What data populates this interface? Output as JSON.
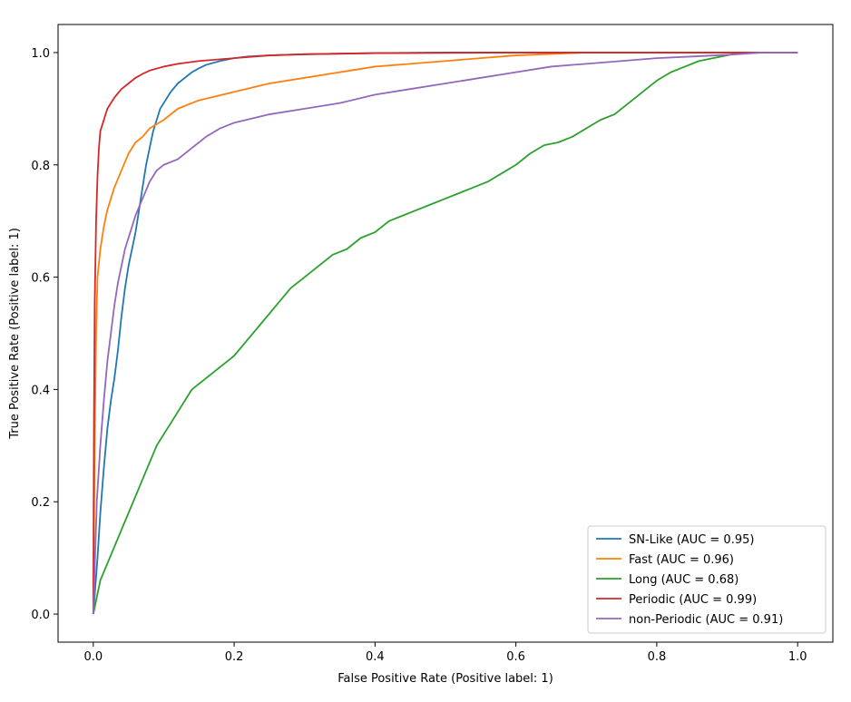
{
  "chart_data": {
    "type": "line",
    "title": "",
    "xlabel": "False Positive Rate (Positive label: 1)",
    "ylabel": "True Positive Rate (Positive label: 1)",
    "xlim": [
      -0.05,
      1.05
    ],
    "ylim": [
      -0.05,
      1.05
    ],
    "grid": false,
    "legend_position": "bottom-right",
    "x_ticks": [
      {
        "value": 0.0,
        "label": "0.0"
      },
      {
        "value": 0.2,
        "label": "0.2"
      },
      {
        "value": 0.4,
        "label": "0.4"
      },
      {
        "value": 0.6,
        "label": "0.6"
      },
      {
        "value": 0.8,
        "label": "0.8"
      },
      {
        "value": 1.0,
        "label": "1.0"
      }
    ],
    "y_ticks": [
      {
        "value": 0.0,
        "label": "0.0"
      },
      {
        "value": 0.2,
        "label": "0.2"
      },
      {
        "value": 0.4,
        "label": "0.4"
      },
      {
        "value": 0.6,
        "label": "0.6"
      },
      {
        "value": 0.8,
        "label": "0.8"
      },
      {
        "value": 1.0,
        "label": "1.0"
      }
    ],
    "series": [
      {
        "name": "SN-Like (AUC = 0.95)",
        "color": "#1f77b4",
        "x": [
          0,
          0.003,
          0.006,
          0.01,
          0.015,
          0.02,
          0.025,
          0.03,
          0.035,
          0.04,
          0.045,
          0.05,
          0.055,
          0.06,
          0.065,
          0.07,
          0.075,
          0.08,
          0.085,
          0.09,
          0.095,
          0.1,
          0.11,
          0.12,
          0.13,
          0.14,
          0.15,
          0.16,
          0.18,
          0.2,
          0.22,
          0.25,
          0.3,
          0.4,
          0.5,
          0.7,
          0.9,
          1.0
        ],
        "y": [
          0,
          0.05,
          0.1,
          0.18,
          0.26,
          0.33,
          0.38,
          0.42,
          0.47,
          0.53,
          0.58,
          0.62,
          0.65,
          0.68,
          0.72,
          0.76,
          0.8,
          0.83,
          0.86,
          0.88,
          0.9,
          0.91,
          0.93,
          0.945,
          0.955,
          0.965,
          0.972,
          0.978,
          0.985,
          0.99,
          0.993,
          0.995,
          0.997,
          0.999,
          1.0,
          1.0,
          1.0,
          1.0
        ]
      },
      {
        "name": "Fast (AUC = 0.96)",
        "color": "#ff7f0e",
        "x": [
          0,
          0.002,
          0.004,
          0.006,
          0.01,
          0.015,
          0.02,
          0.025,
          0.03,
          0.04,
          0.05,
          0.06,
          0.07,
          0.08,
          0.1,
          0.12,
          0.15,
          0.2,
          0.25,
          0.3,
          0.35,
          0.4,
          0.45,
          0.5,
          0.55,
          0.6,
          0.7,
          0.8,
          0.9,
          1.0
        ],
        "y": [
          0,
          0.3,
          0.5,
          0.6,
          0.65,
          0.69,
          0.72,
          0.74,
          0.76,
          0.79,
          0.82,
          0.84,
          0.85,
          0.865,
          0.88,
          0.9,
          0.915,
          0.93,
          0.945,
          0.955,
          0.965,
          0.975,
          0.98,
          0.985,
          0.99,
          0.995,
          1.0,
          1.0,
          1.0,
          1.0
        ]
      },
      {
        "name": "Long (AUC = 0.68)",
        "color": "#2ca02c",
        "x": [
          0,
          0.01,
          0.02,
          0.03,
          0.04,
          0.05,
          0.06,
          0.07,
          0.08,
          0.09,
          0.1,
          0.12,
          0.14,
          0.16,
          0.18,
          0.2,
          0.22,
          0.24,
          0.26,
          0.28,
          0.3,
          0.32,
          0.34,
          0.36,
          0.38,
          0.4,
          0.42,
          0.44,
          0.46,
          0.48,
          0.5,
          0.52,
          0.54,
          0.56,
          0.58,
          0.6,
          0.62,
          0.64,
          0.66,
          0.68,
          0.7,
          0.72,
          0.74,
          0.76,
          0.78,
          0.8,
          0.82,
          0.84,
          0.86,
          0.88,
          0.9,
          0.92,
          0.95,
          1.0
        ],
        "y": [
          0,
          0.06,
          0.09,
          0.12,
          0.15,
          0.18,
          0.21,
          0.24,
          0.27,
          0.3,
          0.32,
          0.36,
          0.4,
          0.42,
          0.44,
          0.46,
          0.49,
          0.52,
          0.55,
          0.58,
          0.6,
          0.62,
          0.64,
          0.65,
          0.67,
          0.68,
          0.7,
          0.71,
          0.72,
          0.73,
          0.74,
          0.75,
          0.76,
          0.77,
          0.785,
          0.8,
          0.82,
          0.835,
          0.84,
          0.85,
          0.865,
          0.88,
          0.89,
          0.91,
          0.93,
          0.95,
          0.965,
          0.975,
          0.985,
          0.99,
          0.995,
          1.0,
          1.0,
          1.0
        ]
      },
      {
        "name": "Periodic (AUC = 0.99)",
        "color": "#d62728",
        "x": [
          0,
          0.001,
          0.002,
          0.004,
          0.006,
          0.008,
          0.01,
          0.015,
          0.02,
          0.03,
          0.04,
          0.05,
          0.06,
          0.07,
          0.08,
          0.1,
          0.12,
          0.15,
          0.2,
          0.25,
          0.3,
          0.4,
          0.6,
          0.8,
          1.0
        ],
        "y": [
          0,
          0.35,
          0.55,
          0.7,
          0.78,
          0.83,
          0.86,
          0.88,
          0.9,
          0.92,
          0.935,
          0.945,
          0.955,
          0.962,
          0.968,
          0.975,
          0.98,
          0.985,
          0.99,
          0.995,
          0.997,
          0.999,
          1.0,
          1.0,
          1.0
        ]
      },
      {
        "name": "non-Periodic (AUC = 0.91)",
        "color": "#9467bd",
        "x": [
          0,
          0.005,
          0.01,
          0.015,
          0.02,
          0.025,
          0.03,
          0.035,
          0.04,
          0.045,
          0.05,
          0.055,
          0.06,
          0.07,
          0.08,
          0.09,
          0.1,
          0.12,
          0.14,
          0.16,
          0.18,
          0.2,
          0.25,
          0.3,
          0.35,
          0.4,
          0.45,
          0.5,
          0.55,
          0.6,
          0.65,
          0.7,
          0.75,
          0.8,
          0.85,
          0.9,
          0.95,
          1.0
        ],
        "y": [
          0,
          0.2,
          0.3,
          0.38,
          0.45,
          0.5,
          0.55,
          0.59,
          0.62,
          0.65,
          0.67,
          0.69,
          0.71,
          0.74,
          0.77,
          0.79,
          0.8,
          0.81,
          0.83,
          0.85,
          0.865,
          0.875,
          0.89,
          0.9,
          0.91,
          0.925,
          0.935,
          0.945,
          0.955,
          0.965,
          0.975,
          0.98,
          0.985,
          0.99,
          0.993,
          0.996,
          1.0,
          1.0
        ]
      }
    ]
  }
}
